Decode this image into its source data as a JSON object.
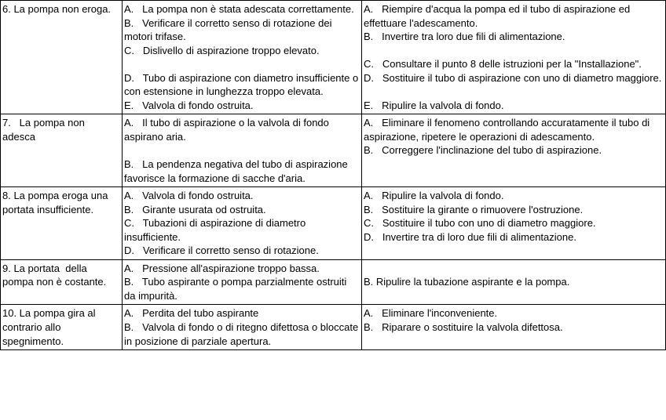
{
  "rows": [
    {
      "problem": "6. La pompa non eroga.",
      "cause": "A.   La pompa non è stata adescata correttamente.\nB.   Verificare il corretto senso di rotazione dei motori trifase.\nC.   Dislivello di aspirazione troppo elevato.\n\nD.   Tubo di aspirazione con diametro insufficiente o con estensione in lunghezza troppo elevata.\nE.   Valvola di fondo ostruita.",
      "remedy": "A.   Riempire d'acqua la pompa ed il tubo di aspirazione ed effettuare l'adescamento.\nB.   Invertire tra loro due fili di alimentazione.\n\nC.   Consultare il punto 8 delle istruzioni per la \"Installazione\".\nD.   Sostituire il tubo di aspirazione con uno di diametro maggiore.\n\nE.   Ripulire la valvola di fondo."
    },
    {
      "problem": "7.   La pompa non adesca",
      "cause": "A.   Il tubo di aspirazione o la valvola di fondo aspirano aria.\n\nB.   La pendenza negativa del tubo di aspirazione favorisce la formazione di sacche d'aria.",
      "remedy": "A.   Eliminare il fenomeno controllando accuratamente il tubo di aspirazione, ripetere le operazioni di adescamento.\nB.   Correggere l'inclinazione del tubo di aspirazione."
    },
    {
      "problem": "8. La pompa eroga una portata insufficiente.",
      "cause": "A.   Valvola di fondo ostruita.\nB.   Girante usurata od ostruita.\nC.   Tubazioni di aspirazione di diametro insufficiente.\nD.   Verificare il corretto senso di rotazione.",
      "remedy": "A.   Ripulire la valvola di fondo.\nB.   Sostituire la girante o rimuovere l'ostruzione.\nC.   Sostituire il tubo con uno di diametro maggiore.\nD.   Invertire tra di loro due fili di alimentazione."
    },
    {
      "problem": "9. La portata  della pompa non è costante.",
      "cause": "A.   Pressione all'aspirazione troppo bassa.\nB.   Tubo aspirante o pompa parzialmente ostruiti da impurità.",
      "remedy": "\nB. Ripulire la tubazione aspirante e la pompa."
    },
    {
      "problem": "10. La pompa gira al contrario allo spegnimento.",
      "cause": "A.   Perdita del tubo aspirante\nB.   Valvola di fondo o di ritegno difettosa o bloccate in posizione di parziale apertura.",
      "remedy": "A.   Eliminare l'inconveniente.\nB.   Riparare o sostituire la valvola difettosa."
    }
  ]
}
